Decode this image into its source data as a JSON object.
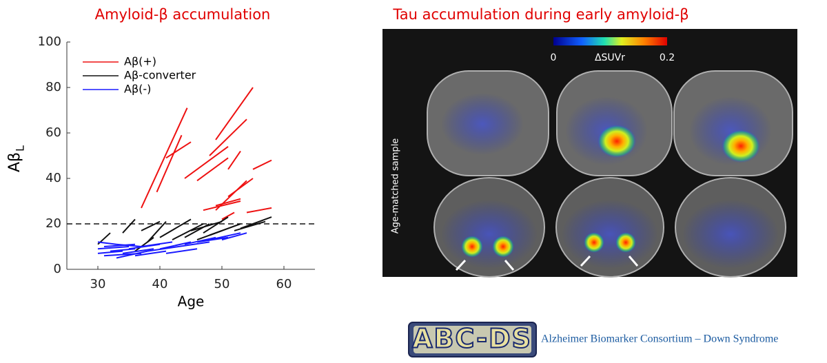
{
  "chart_data": {
    "type": "segments",
    "title": "Amyloid-β accumulation",
    "xlabel": "Age",
    "ylabel": "Aβ",
    "ylabel_sub": "L",
    "xlim": [
      25,
      65
    ],
    "xticks": [
      30,
      40,
      50,
      60
    ],
    "ylim": [
      0,
      100
    ],
    "yticks": [
      0,
      20,
      40,
      60,
      80,
      100
    ],
    "hline": 20,
    "legend": "upper left",
    "series": [
      {
        "name": "Aβ(+)",
        "color": "#ee1111",
        "lines": [
          {
            "x": [
              37,
              44.4
            ],
            "values": [
              27,
              71
            ]
          },
          {
            "x": [
              39.5,
              43.5
            ],
            "values": [
              34,
              59
            ]
          },
          {
            "x": [
              41,
              45
            ],
            "values": [
              49,
              56
            ]
          },
          {
            "x": [
              44,
              51
            ],
            "values": [
              40,
              54
            ]
          },
          {
            "x": [
              46,
              51
            ],
            "values": [
              39,
              49
            ]
          },
          {
            "x": [
              48,
              54
            ],
            "values": [
              50,
              66
            ]
          },
          {
            "x": [
              49,
              55
            ],
            "values": [
              57,
              80
            ]
          },
          {
            "x": [
              51,
              53
            ],
            "values": [
              44,
              52
            ]
          },
          {
            "x": [
              49,
              54
            ],
            "values": [
              26,
              39
            ]
          },
          {
            "x": [
              51,
              55
            ],
            "values": [
              32,
              40
            ]
          },
          {
            "x": [
              49,
              53
            ],
            "values": [
              28,
              31
            ]
          },
          {
            "x": [
              54,
              58
            ],
            "values": [
              25,
              27
            ]
          },
          {
            "x": [
              55,
              58
            ],
            "values": [
              44,
              48
            ]
          },
          {
            "x": [
              47,
              53
            ],
            "values": [
              26,
              30
            ]
          },
          {
            "x": [
              50,
              52
            ],
            "values": [
              22,
              25
            ]
          }
        ]
      },
      {
        "name": "Aβ-converter",
        "color": "#111111",
        "lines": [
          {
            "x": [
              30,
              32
            ],
            "values": [
              11,
              16
            ]
          },
          {
            "x": [
              34,
              36
            ],
            "values": [
              16,
              22
            ]
          },
          {
            "x": [
              37,
              40
            ],
            "values": [
              17,
              21
            ]
          },
          {
            "x": [
              38,
              41
            ],
            "values": [
              12,
              21
            ]
          },
          {
            "x": [
              40,
              45
            ],
            "values": [
              14,
              22
            ]
          },
          {
            "x": [
              42,
              47
            ],
            "values": [
              13,
              20
            ]
          },
          {
            "x": [
              44,
              48
            ],
            "values": [
              14,
              20
            ]
          },
          {
            "x": [
              45,
              50
            ],
            "values": [
              17,
              21
            ]
          },
          {
            "x": [
              47,
              51
            ],
            "values": [
              16,
              23
            ]
          },
          {
            "x": [
              48,
              53
            ],
            "values": [
              15,
              20
            ]
          },
          {
            "x": [
              52,
              57
            ],
            "values": [
              17,
              21
            ]
          },
          {
            "x": [
              53,
              58
            ],
            "values": [
              18,
              23
            ]
          },
          {
            "x": [
              46,
              50
            ],
            "values": [
              13,
              17
            ]
          },
          {
            "x": [
              36,
              39
            ],
            "values": [
              8,
              14
            ]
          }
        ]
      },
      {
        "name": "Aβ(-)",
        "color": "#1a1aff",
        "lines": [
          {
            "x": [
              30,
              35
            ],
            "values": [
              9,
              10
            ]
          },
          {
            "x": [
              30,
              34
            ],
            "values": [
              7,
              8
            ]
          },
          {
            "x": [
              31,
              36
            ],
            "values": [
              10,
              11
            ]
          },
          {
            "x": [
              31,
              37
            ],
            "values": [
              6,
              7
            ]
          },
          {
            "x": [
              32,
              36
            ],
            "values": [
              8,
              9
            ]
          },
          {
            "x": [
              33,
              38
            ],
            "values": [
              5,
              8
            ]
          },
          {
            "x": [
              33,
              37
            ],
            "values": [
              11,
              10
            ]
          },
          {
            "x": [
              34,
              39
            ],
            "values": [
              7,
              9
            ]
          },
          {
            "x": [
              35,
              40
            ],
            "values": [
              9,
              11
            ]
          },
          {
            "x": [
              36,
              41
            ],
            "values": [
              6,
              8
            ]
          },
          {
            "x": [
              37,
              42
            ],
            "values": [
              10,
              12
            ]
          },
          {
            "x": [
              38,
              43
            ],
            "values": [
              8,
              10
            ]
          },
          {
            "x": [
              40,
              45
            ],
            "values": [
              9,
              12
            ]
          },
          {
            "x": [
              41,
              46
            ],
            "values": [
              7,
              9
            ]
          },
          {
            "x": [
              43,
              48
            ],
            "values": [
              10,
              12
            ]
          },
          {
            "x": [
              44,
              49
            ],
            "values": [
              11,
              14
            ]
          },
          {
            "x": [
              46,
              51
            ],
            "values": [
              12,
              14
            ]
          },
          {
            "x": [
              48,
              53
            ],
            "values": [
              13,
              16
            ]
          },
          {
            "x": [
              50,
              54
            ],
            "values": [
              13,
              16
            ]
          },
          {
            "x": [
              30,
              33
            ],
            "values": [
              12,
              11
            ]
          }
        ]
      }
    ]
  },
  "figure": {
    "title": "Tau accumulation during early amyloid-β",
    "colorbar": {
      "label": "ΔSUVr",
      "lim": [
        0,
        0.2
      ],
      "ticks": [
        0,
        0.2
      ]
    },
    "side_label": "Age-matched sample"
  },
  "footer": {
    "logo": "ABC-DS",
    "text": "Alzheimer Biomarker Consortium – Down Syndrome"
  }
}
